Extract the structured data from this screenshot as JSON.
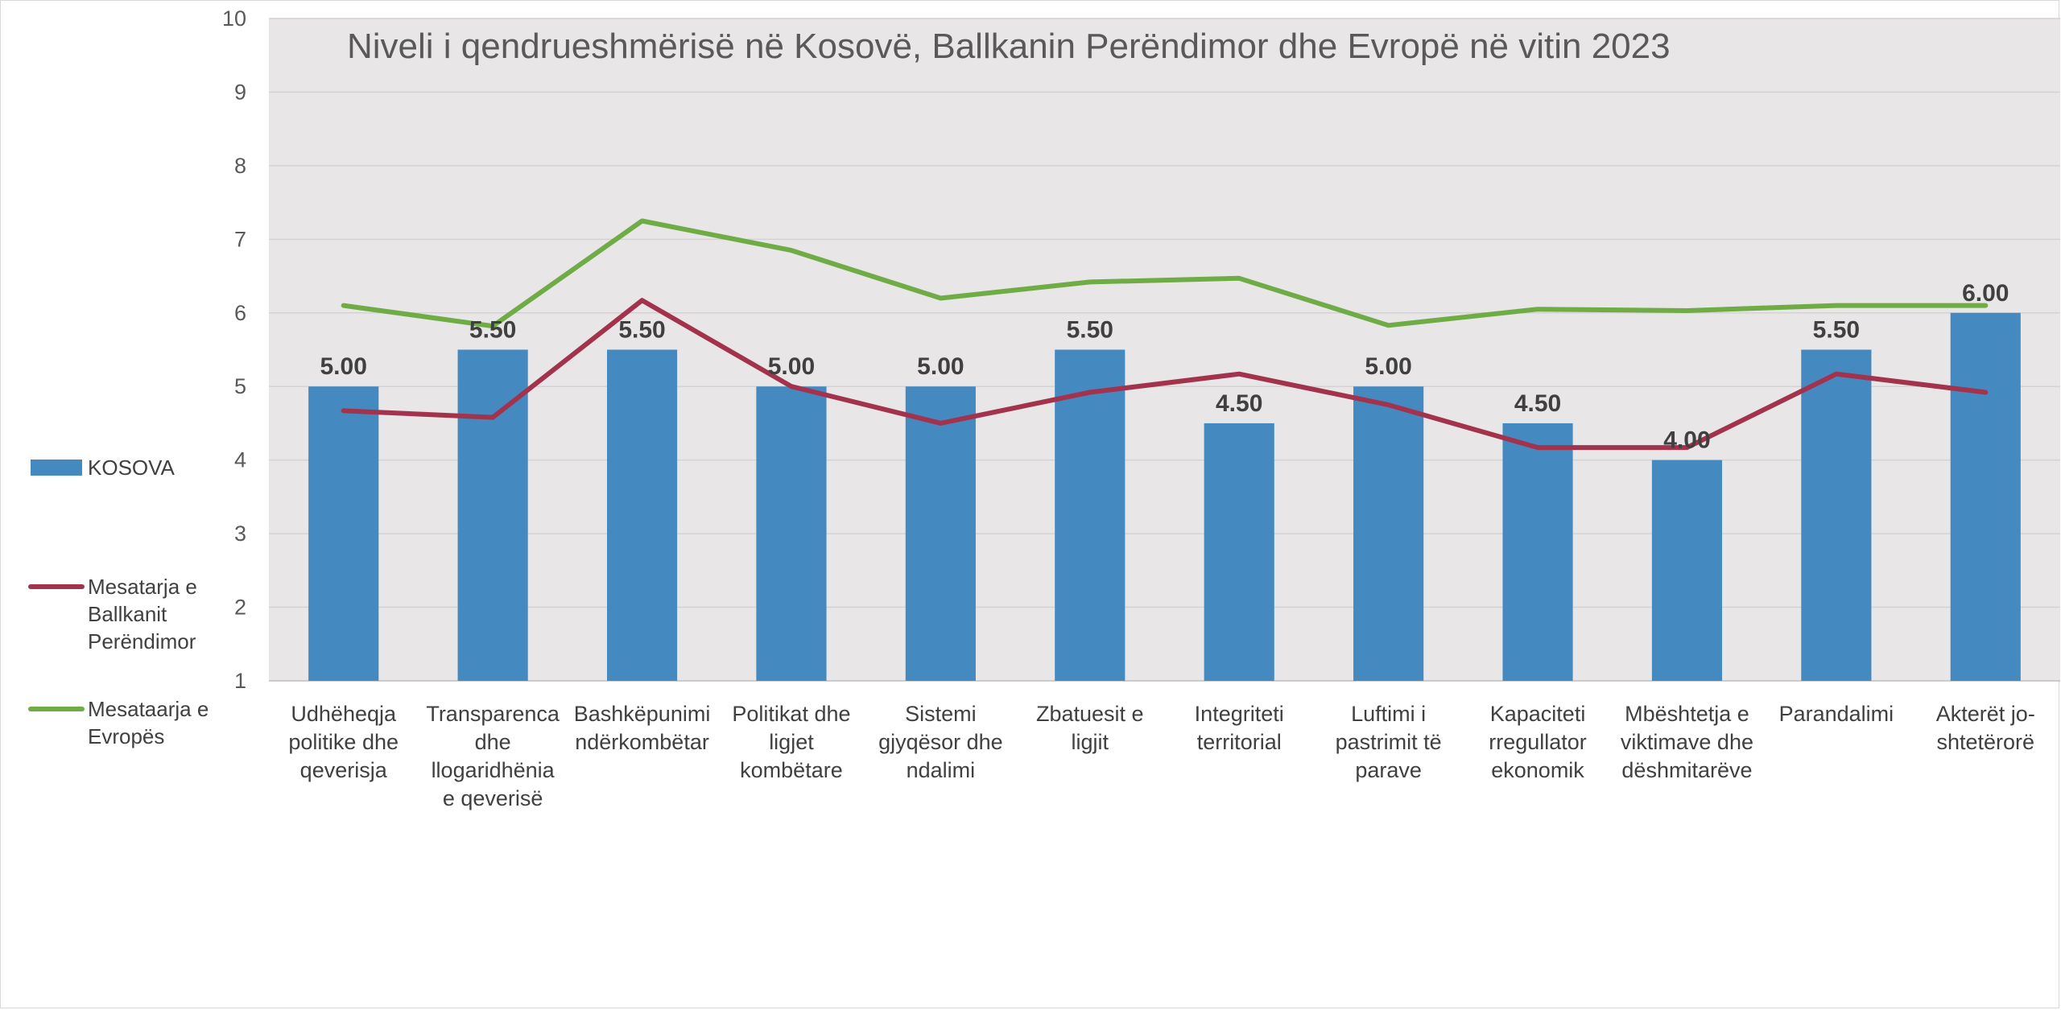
{
  "chart_data": {
    "type": "bar",
    "title": "Niveli i qendrueshmërisë në Kosovë, Ballkanin Perëndimor dhe Evropë në vitin 2023",
    "xlabel": "",
    "ylabel": "",
    "ylim": [
      1,
      10
    ],
    "yticks": [
      "1",
      "2",
      "3",
      "4",
      "5",
      "6",
      "7",
      "8",
      "9",
      "10"
    ],
    "grid": true,
    "legend_position": "left",
    "categories": [
      [
        "Udhëheqja",
        "politike dhe",
        "qeverisja"
      ],
      [
        "Transparenca",
        "dhe",
        "llogaridhënia",
        "e qeverisë"
      ],
      [
        "Bashkëpunimi",
        "ndërkombëtar"
      ],
      [
        "Politikat dhe",
        "ligjet",
        "kombëtare"
      ],
      [
        "Sistemi",
        "gjyqësor dhe",
        "ndalimi"
      ],
      [
        "Zbatuesit e",
        "ligjit"
      ],
      [
        "Integriteti",
        "territorial"
      ],
      [
        "Luftimi i",
        "pastrimit të",
        "parave"
      ],
      [
        "Kapaciteti",
        "rregullator",
        "ekonomik"
      ],
      [
        "Mbështetja e",
        "viktimave dhe",
        "dëshmitarëve"
      ],
      [
        "Parandalimi"
      ],
      [
        "Akterët jo-",
        "shtetërorë"
      ]
    ],
    "series": [
      {
        "name": "KOSOVA",
        "kind": "bar",
        "color": "#4589C1",
        "values": [
          5.0,
          5.5,
          5.5,
          5.0,
          5.0,
          5.5,
          4.5,
          5.0,
          4.5,
          4.0,
          5.5,
          6.0
        ],
        "data_labels": [
          "5.00",
          "5.50",
          "5.50",
          "5.00",
          "5.00",
          "5.50",
          "4.50",
          "5.00",
          "4.50",
          "4.00",
          "5.50",
          "6.00"
        ]
      },
      {
        "name": "Mesatarja e Ballkanit Perëndimor",
        "legend_lines": [
          "Mesatarja e",
          "Ballkanit",
          "Perëndimor"
        ],
        "kind": "line",
        "color": "#A3334D",
        "values": [
          4.67,
          4.58,
          6.17,
          5.0,
          4.5,
          4.92,
          5.17,
          4.75,
          4.17,
          4.17,
          5.17,
          4.92
        ]
      },
      {
        "name": "Mesataarja e Evropës",
        "legend_lines": [
          "Mesataarja e",
          "Evropës"
        ],
        "kind": "line",
        "color": "#6FAC46",
        "values": [
          6.1,
          5.82,
          7.25,
          6.85,
          6.2,
          6.42,
          6.47,
          5.83,
          6.05,
          6.03,
          6.1,
          6.1
        ]
      }
    ]
  }
}
